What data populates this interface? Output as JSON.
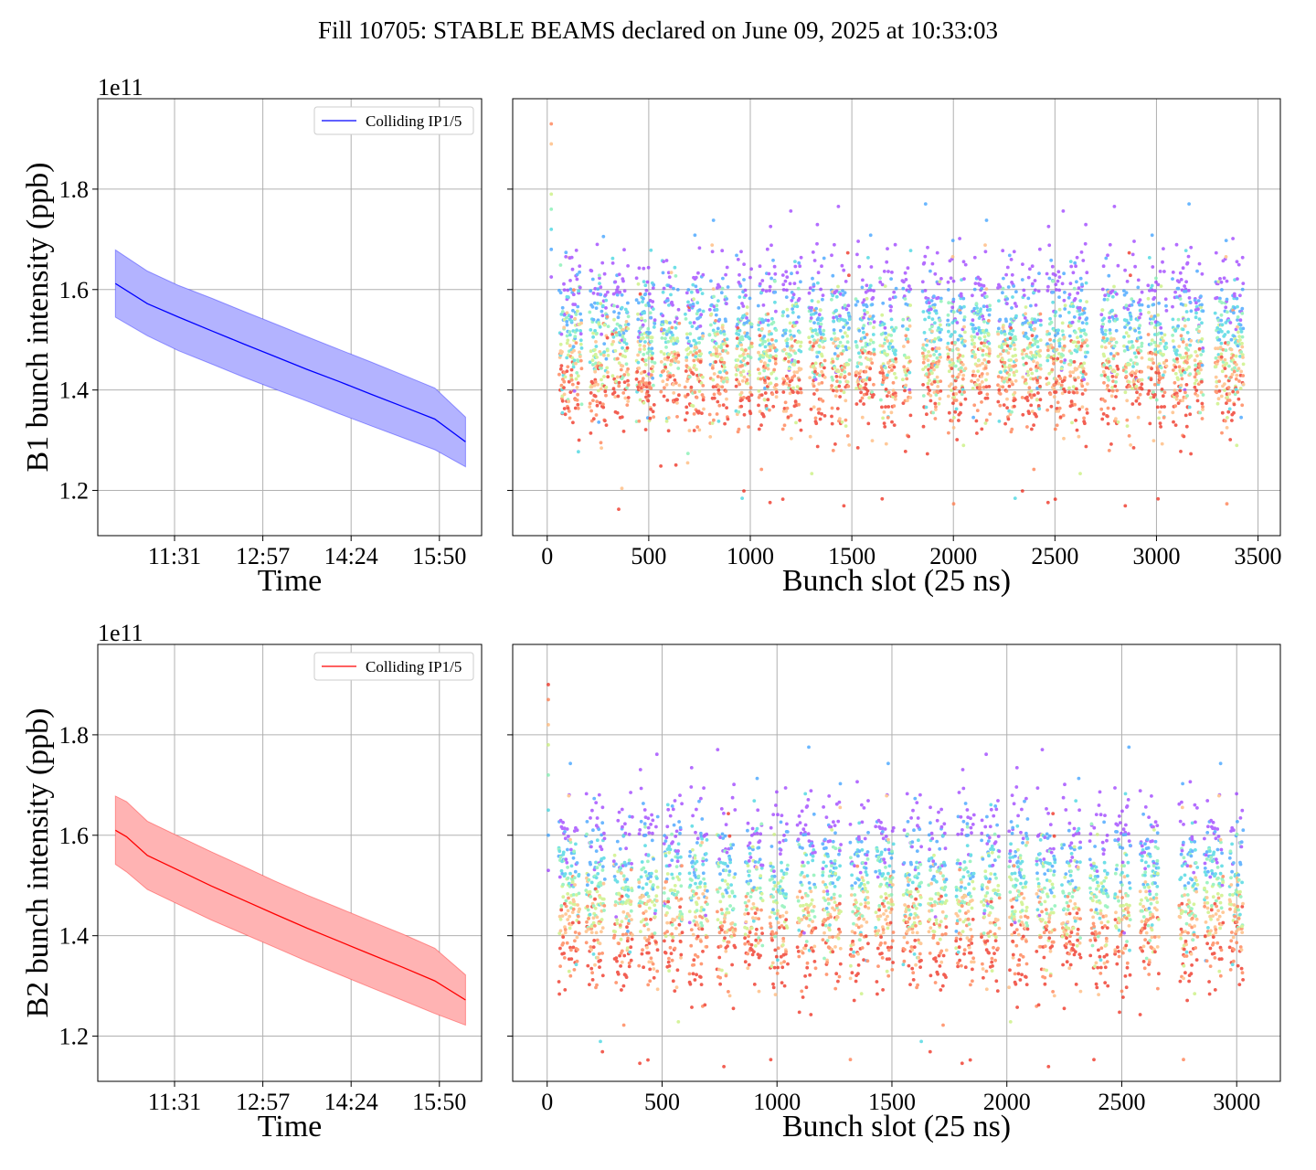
{
  "title": "Fill 10705: STABLE BEAMS declared on June 09, 2025 at 10:33:03",
  "colors": {
    "b1_line": "#0000ff",
    "b1_band": "#b3b3ff",
    "b2_line": "#ff0000",
    "b2_band": "#ffb3b3",
    "grid": "#b0b0b0"
  },
  "chart_data": [
    {
      "id": "b1-time",
      "type": "line",
      "ylabel": "B1 bunch intensity (ppb)",
      "xlabel": "Time",
      "y_offset_label": "1e11",
      "x_tick_labels": [
        "11:31",
        "12:57",
        "14:24",
        "15:50"
      ],
      "y_ticks": [
        1.2,
        1.4,
        1.6,
        1.8
      ],
      "xlim": [
        0,
        100
      ],
      "ylim": [
        1.11,
        1.98
      ],
      "x_tick_positions": [
        20,
        43,
        66,
        89
      ],
      "legend": {
        "label": "Colliding IP1/5",
        "position": "top-right"
      },
      "series": [
        {
          "name": "Colliding IP1/5",
          "color": "#0000ff",
          "band_color": "#b3b3ff",
          "x": [
            4.6,
            12.9,
            21.1,
            29.6,
            37.9,
            46.1,
            54.5,
            62.8,
            71.1,
            79.5,
            87.8,
            95.8
          ],
          "y": [
            1.612,
            1.572,
            1.545,
            1.518,
            1.492,
            1.467,
            1.441,
            1.417,
            1.392,
            1.367,
            1.342,
            1.297
          ],
          "lower": [
            1.545,
            1.508,
            1.478,
            1.452,
            1.426,
            1.402,
            1.378,
            1.353,
            1.329,
            1.305,
            1.281,
            1.247
          ],
          "upper": [
            1.679,
            1.637,
            1.608,
            1.583,
            1.557,
            1.532,
            1.506,
            1.481,
            1.456,
            1.43,
            1.404,
            1.346
          ]
        }
      ]
    },
    {
      "id": "b1-slot",
      "type": "scatter",
      "xlabel": "Bunch slot (25 ns)",
      "x_ticks": [
        0,
        500,
        1000,
        1500,
        2000,
        2500,
        3000,
        3500
      ],
      "y_ticks": [
        1.2,
        1.4,
        1.6,
        1.8
      ],
      "xlim": [
        -170,
        3610
      ],
      "ylim": [
        1.11,
        1.98
      ],
      "color_scale": "rainbow (purple = earliest, red = latest)",
      "bands": [
        {
          "value": 1.595,
          "color": "#9b3dff"
        },
        {
          "value": 1.555,
          "color": "#3aa0ff"
        },
        {
          "value": 1.52,
          "color": "#3fd5e0"
        },
        {
          "value": 1.49,
          "color": "#7ff0b0"
        },
        {
          "value": 1.465,
          "color": "#c8f07a"
        },
        {
          "value": 1.44,
          "color": "#ffb878"
        },
        {
          "value": 1.42,
          "color": "#ff7a4a"
        },
        {
          "value": 1.39,
          "color": "#ee2a1a"
        }
      ],
      "trains": [
        [
          60,
          170
        ],
        [
          210,
          300
        ],
        [
          320,
          400
        ],
        [
          440,
          530
        ],
        [
          560,
          650
        ],
        [
          680,
          770
        ],
        [
          800,
          890
        ],
        [
          930,
          1010
        ],
        [
          1040,
          1130
        ],
        [
          1160,
          1250
        ],
        [
          1290,
          1370
        ],
        [
          1400,
          1490
        ],
        [
          1520,
          1610
        ],
        [
          1640,
          1720
        ],
        [
          1750,
          1790
        ],
        [
          1850,
          1940
        ],
        [
          1970,
          2060
        ],
        [
          2090,
          2180
        ],
        [
          2220,
          2310
        ],
        [
          2340,
          2430
        ],
        [
          2460,
          2550
        ],
        [
          2570,
          2660
        ],
        [
          2730,
          2810
        ],
        [
          2840,
          2930
        ],
        [
          2960,
          3050
        ],
        [
          3080,
          3170
        ],
        [
          3190,
          3230
        ],
        [
          3290,
          3430
        ]
      ],
      "pilot": {
        "x": 20,
        "values": [
          1.625,
          1.68,
          1.72,
          1.76,
          1.79,
          1.89,
          1.93
        ]
      }
    },
    {
      "id": "b2-time",
      "type": "line",
      "ylabel": "B2 bunch intensity (ppb)",
      "xlabel": "Time",
      "y_offset_label": "1e11",
      "x_tick_labels": [
        "11:31",
        "12:57",
        "14:24",
        "15:50"
      ],
      "y_ticks": [
        1.2,
        1.4,
        1.6,
        1.8
      ],
      "xlim": [
        0,
        100
      ],
      "ylim": [
        1.11,
        1.98
      ],
      "x_tick_positions": [
        20,
        43,
        66,
        89
      ],
      "legend": {
        "label": "Colliding IP1/5",
        "position": "top-right"
      },
      "series": [
        {
          "name": "Colliding IP1/5",
          "color": "#ff0000",
          "band_color": "#ffb3b3",
          "x": [
            4.6,
            7.5,
            12.9,
            21.1,
            29.6,
            37.9,
            46.1,
            54.5,
            62.8,
            71.1,
            79.5,
            87.8,
            95.8
          ],
          "y": [
            1.61,
            1.597,
            1.56,
            1.53,
            1.499,
            1.471,
            1.443,
            1.415,
            1.389,
            1.363,
            1.337,
            1.31,
            1.272
          ],
          "lower": [
            1.542,
            1.527,
            1.492,
            1.462,
            1.431,
            1.404,
            1.377,
            1.349,
            1.323,
            1.297,
            1.271,
            1.245,
            1.222
          ],
          "upper": [
            1.678,
            1.667,
            1.628,
            1.598,
            1.567,
            1.538,
            1.509,
            1.481,
            1.455,
            1.429,
            1.403,
            1.375,
            1.322
          ]
        }
      ]
    },
    {
      "id": "b2-slot",
      "type": "scatter",
      "xlabel": "Bunch slot (25 ns)",
      "x_ticks": [
        0,
        500,
        1000,
        1500,
        2000,
        2500,
        3000
      ],
      "y_ticks": [
        1.2,
        1.4,
        1.6,
        1.8
      ],
      "xlim": [
        -150,
        3190
      ],
      "ylim": [
        1.11,
        1.98
      ],
      "color_scale": "rainbow (purple = earliest, red = latest)",
      "bands": [
        {
          "value": 1.6,
          "color": "#9b3dff"
        },
        {
          "value": 1.56,
          "color": "#3aa0ff"
        },
        {
          "value": 1.525,
          "color": "#3fd5e0"
        },
        {
          "value": 1.49,
          "color": "#7ff0b0"
        },
        {
          "value": 1.46,
          "color": "#c8f07a"
        },
        {
          "value": 1.43,
          "color": "#ffb878"
        },
        {
          "value": 1.4,
          "color": "#ff7a4a"
        },
        {
          "value": 1.36,
          "color": "#ee2a1a"
        }
      ],
      "trains": [
        [
          50,
          140
        ],
        [
          170,
          250
        ],
        [
          290,
          370
        ],
        [
          400,
          480
        ],
        [
          510,
          590
        ],
        [
          620,
          700
        ],
        [
          740,
          820
        ],
        [
          860,
          940
        ],
        [
          970,
          1050
        ],
        [
          1090,
          1170
        ],
        [
          1200,
          1280
        ],
        [
          1320,
          1400
        ],
        [
          1430,
          1510
        ],
        [
          1550,
          1630
        ],
        [
          1660,
          1740
        ],
        [
          1780,
          1860
        ],
        [
          1890,
          1970
        ],
        [
          2010,
          2090
        ],
        [
          2130,
          2210
        ],
        [
          2240,
          2320
        ],
        [
          2360,
          2440
        ],
        [
          2470,
          2540
        ],
        [
          2580,
          2660
        ],
        [
          2750,
          2830
        ],
        [
          2860,
          2940
        ],
        [
          2970,
          3030
        ]
      ],
      "pilot": {
        "x": 5,
        "values": [
          1.53,
          1.6,
          1.65,
          1.72,
          1.78,
          1.82,
          1.87,
          1.9
        ]
      }
    }
  ]
}
